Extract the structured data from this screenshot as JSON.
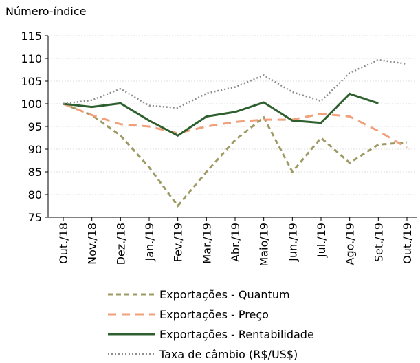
{
  "chart_data": {
    "type": "line",
    "y_label": "Número-índice",
    "categories": [
      "Out./18",
      "Nov./18",
      "Dez./18",
      "Jan./19",
      "Fev./19",
      "Mar./19",
      "Abr./19",
      "Maio/19",
      "Jun./19",
      "Jul./19",
      "Ago./19",
      "Set./19",
      "Out./19"
    ],
    "series": [
      {
        "name": "Exportações - Quantum",
        "color": "#9e9a63",
        "line_style": "dashed",
        "values": [
          100,
          97.5,
          93,
          86,
          77.5,
          85,
          92,
          97,
          85,
          92.5,
          87,
          91,
          91.5
        ]
      },
      {
        "name": "Exportações - Preço",
        "color": "#f0a07a",
        "line_style": "longdash",
        "values": [
          100,
          97.5,
          95.5,
          95,
          93.5,
          95,
          96,
          96.5,
          96.5,
          97.8,
          97.2,
          94,
          90.3
        ]
      },
      {
        "name": "Exportações - Rentabilidade",
        "color": "#2e5f2e",
        "line_style": "solid",
        "values": [
          100,
          99.3,
          100.1,
          96.3,
          93,
          97.2,
          98.2,
          100.3,
          96.3,
          95.8,
          102.2,
          100.1,
          null
        ]
      },
      {
        "name": "Taxa de câmbio (R$/US$)",
        "color": "#8c8c8c",
        "line_style": "dotted",
        "values": [
          100,
          100.8,
          103.3,
          99.6,
          99.1,
          102.3,
          103.7,
          106.3,
          102.6,
          100.6,
          106.8,
          109.7,
          108.8
        ]
      }
    ],
    "ylim": [
      75,
      115
    ],
    "yticks": [
      75,
      80,
      85,
      90,
      95,
      100,
      105,
      110,
      115
    ],
    "grid": true,
    "legend": "bottom"
  }
}
